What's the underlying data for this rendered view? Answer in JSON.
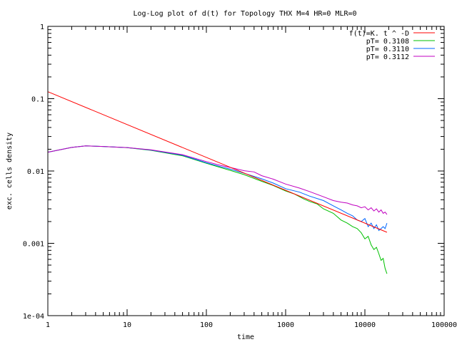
{
  "chart_data": {
    "type": "line",
    "title": "Log-Log plot of d(t) for Topology THX M=4 HR=0 MLR=0",
    "xlabel": "time",
    "ylabel": "exc. cells density",
    "x_scale": "log",
    "y_scale": "log",
    "xlim": [
      1,
      100000
    ],
    "ylim": [
      0.0001,
      1
    ],
    "grid": false,
    "legend_position": "top-right",
    "x_ticks": [
      {
        "value": 1,
        "label": "1"
      },
      {
        "value": 10,
        "label": "10"
      },
      {
        "value": 100,
        "label": "100"
      },
      {
        "value": 1000,
        "label": "1000"
      },
      {
        "value": 10000,
        "label": "10000"
      },
      {
        "value": 100000,
        "label": "100000"
      }
    ],
    "y_ticks": [
      {
        "value": 1,
        "label": "1"
      },
      {
        "value": 0.1,
        "label": "0.1"
      },
      {
        "value": 0.01,
        "label": "0.01"
      },
      {
        "value": 0.001,
        "label": "0.001"
      },
      {
        "value": 0.0001,
        "label": "1e-04"
      }
    ],
    "series": [
      {
        "name": "f(t)=K. t ^ -D",
        "color": "#ff0000",
        "x": [
          1,
          19000
        ],
        "y": [
          0.125,
          0.00142
        ]
      },
      {
        "name": "pT= 0.3108",
        "color": "#00c000",
        "x": [
          1,
          2,
          3,
          5,
          10,
          20,
          50,
          100,
          150,
          200,
          300,
          500,
          700,
          1000,
          1300,
          1700,
          2000,
          2500,
          3000,
          4000,
          5000,
          6000,
          7000,
          8000,
          9000,
          10000,
          11000,
          12000,
          13000,
          14000,
          15000,
          16000,
          17000,
          18000,
          19000
        ],
        "y": [
          0.0182,
          0.0212,
          0.0222,
          0.0218,
          0.021,
          0.0193,
          0.0162,
          0.0128,
          0.0112,
          0.0102,
          0.0089,
          0.0072,
          0.0063,
          0.0053,
          0.0048,
          0.0041,
          0.0038,
          0.0035,
          0.003,
          0.0026,
          0.0021,
          0.0019,
          0.0017,
          0.0016,
          0.0014,
          0.00115,
          0.00125,
          0.00095,
          0.00082,
          0.00088,
          0.00072,
          0.00058,
          0.00062,
          0.00045,
          0.00038
        ]
      },
      {
        "name": "pT= 0.3110",
        "color": "#0066ff",
        "x": [
          1,
          2,
          3,
          5,
          10,
          20,
          50,
          100,
          150,
          200,
          300,
          500,
          700,
          1000,
          1500,
          2000,
          3000,
          4000,
          5000,
          6000,
          7000,
          8000,
          9000,
          10000,
          11000,
          12000,
          13000,
          14000,
          15000,
          16000,
          17000,
          18000,
          19000
        ],
        "y": [
          0.0182,
          0.0212,
          0.0222,
          0.0218,
          0.0211,
          0.0195,
          0.0165,
          0.013,
          0.0115,
          0.0106,
          0.0093,
          0.0078,
          0.0068,
          0.0057,
          0.0051,
          0.0045,
          0.0039,
          0.0033,
          0.0029,
          0.0026,
          0.0024,
          0.0021,
          0.002,
          0.0022,
          0.0017,
          0.0019,
          0.0016,
          0.0018,
          0.0015,
          0.0016,
          0.0017,
          0.0016,
          0.0019
        ]
      },
      {
        "name": "pT= 0.3112",
        "color": "#c000c0",
        "x": [
          1,
          2,
          3,
          5,
          10,
          20,
          50,
          100,
          150,
          200,
          300,
          400,
          500,
          700,
          1000,
          1500,
          2000,
          3000,
          4000,
          5000,
          6000,
          7000,
          8000,
          9000,
          10000,
          11000,
          12000,
          13000,
          14000,
          15000,
          16000,
          17000,
          18000,
          19000
        ],
        "y": [
          0.0182,
          0.0212,
          0.0222,
          0.0218,
          0.0211,
          0.0196,
          0.0168,
          0.0135,
          0.012,
          0.0112,
          0.0101,
          0.0097,
          0.0086,
          0.0077,
          0.0066,
          0.0058,
          0.0052,
          0.0044,
          0.0039,
          0.0037,
          0.0036,
          0.0034,
          0.0033,
          0.0031,
          0.0032,
          0.0029,
          0.0031,
          0.0028,
          0.003,
          0.0027,
          0.0029,
          0.0026,
          0.0027,
          0.0025
        ]
      }
    ]
  }
}
